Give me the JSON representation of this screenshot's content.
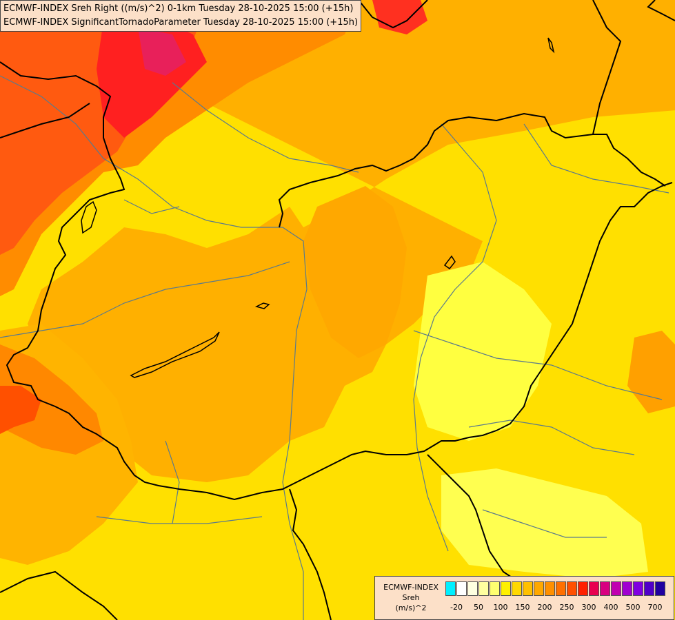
{
  "header": {
    "line1": "ECMWF-INDEX Sreh Right ((m/s)^2) 0-1km Tuesday 28-10-2025 15:00 (+15h)",
    "line2": "ECMWF-INDEX SignificantTornadoParameter Tuesday 28-10-2025 15:00 (+15h)"
  },
  "legend": {
    "model": "ECMWF-INDEX",
    "parameter": "Sreh",
    "unit": "(m/s)^2",
    "colors": [
      "#00f0ff",
      "#ffffff",
      "#ffffe0",
      "#ffffa0",
      "#ffff70",
      "#fff000",
      "#ffd800",
      "#ffc000",
      "#ffa800",
      "#ff9000",
      "#ff7000",
      "#ff5000",
      "#ff2000",
      "#e80050",
      "#d80080",
      "#c000b0",
      "#a000d0",
      "#8000e0",
      "#5000c8",
      "#2000a0"
    ],
    "ticks": [
      "-20",
      "50",
      "100",
      "150",
      "200",
      "250",
      "300",
      "400",
      "500",
      "700"
    ]
  }
}
